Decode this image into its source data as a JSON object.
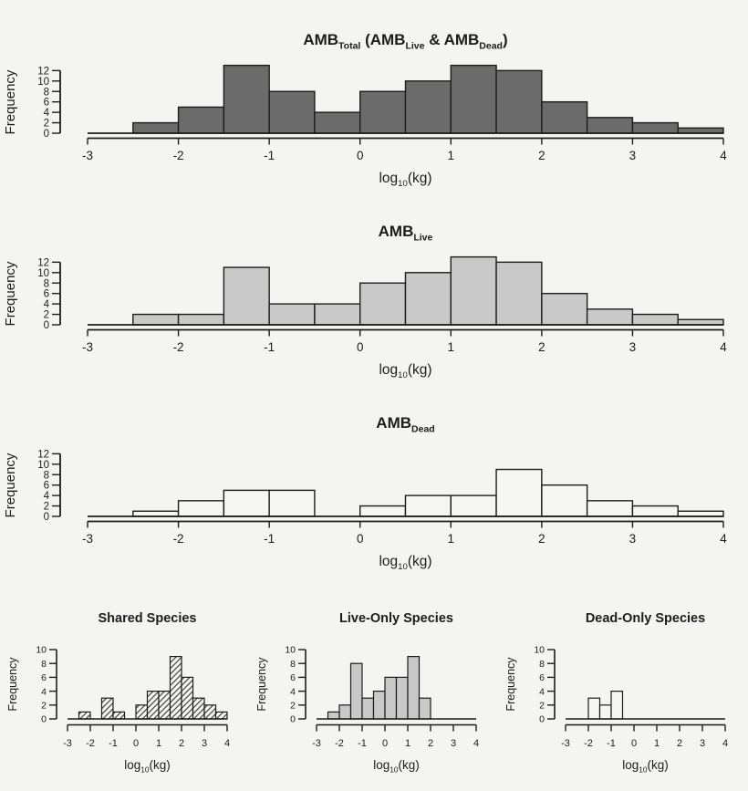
{
  "colors": {
    "background": "#f4f4f2",
    "bar_dark": "#6b6b6b",
    "bar_light": "#c9c9c9",
    "bar_white": "#f6f6f5",
    "stroke": "#1c1c1c",
    "text": "#1c1c1c"
  },
  "chart_data": [
    {
      "id": "amb-total",
      "type": "bar",
      "subtype": "histogram",
      "size": "large",
      "title": "AMB_Total (AMB_Live & AMB_Dead)",
      "title_parts": [
        {
          "t": "AMB"
        },
        {
          "sub": "Total"
        },
        {
          "t": " (AMB"
        },
        {
          "sub": "Live"
        },
        {
          "t": " & AMB"
        },
        {
          "sub": "Dead"
        },
        {
          "t": ")"
        }
      ],
      "xlabel": "log10(kg)",
      "xlabel_parts": [
        {
          "t": "log"
        },
        {
          "sub": "10"
        },
        {
          "t": "(kg)"
        }
      ],
      "ylabel": "Frequency",
      "bin_start": -3,
      "bin_width": 0.5,
      "values": [
        0,
        2,
        5,
        13,
        8,
        4,
        8,
        10,
        13,
        12,
        6,
        3,
        2,
        1
      ],
      "xlim": [
        -3,
        4
      ],
      "ylim": [
        0,
        13
      ],
      "x_ticks": [
        -3,
        -2,
        -1,
        0,
        1,
        2,
        3,
        4
      ],
      "y_ticks": [
        0,
        2,
        4,
        6,
        8,
        10,
        12
      ],
      "grid": false,
      "legend": "none",
      "fill": "dark"
    },
    {
      "id": "amb-live",
      "type": "bar",
      "subtype": "histogram",
      "size": "large",
      "title": "AMB_Live",
      "title_parts": [
        {
          "t": "AMB"
        },
        {
          "sub": "Live"
        }
      ],
      "xlabel": "log10(kg)",
      "xlabel_parts": [
        {
          "t": "log"
        },
        {
          "sub": "10"
        },
        {
          "t": "(kg)"
        }
      ],
      "ylabel": "Frequency",
      "bin_start": -3,
      "bin_width": 0.5,
      "values": [
        0,
        2,
        2,
        11,
        4,
        4,
        8,
        10,
        13,
        12,
        6,
        3,
        2,
        1
      ],
      "xlim": [
        -3,
        4
      ],
      "ylim": [
        0,
        13
      ],
      "x_ticks": [
        -3,
        -2,
        -1,
        0,
        1,
        2,
        3,
        4
      ],
      "y_ticks": [
        0,
        2,
        4,
        6,
        8,
        10,
        12
      ],
      "grid": false,
      "legend": "none",
      "fill": "light"
    },
    {
      "id": "amb-dead",
      "type": "bar",
      "subtype": "histogram",
      "size": "large",
      "title": "AMB_Dead",
      "title_parts": [
        {
          "t": "AMB"
        },
        {
          "sub": "Dead"
        }
      ],
      "xlabel": "log10(kg)",
      "xlabel_parts": [
        {
          "t": "log"
        },
        {
          "sub": "10"
        },
        {
          "t": "(kg)"
        }
      ],
      "ylabel": "Frequency",
      "bin_start": -3,
      "bin_width": 0.5,
      "values": [
        0,
        1,
        3,
        5,
        5,
        0,
        2,
        4,
        4,
        9,
        6,
        3,
        2,
        1
      ],
      "xlim": [
        -3,
        4
      ],
      "ylim": [
        0,
        13
      ],
      "x_ticks": [
        -3,
        -2,
        -1,
        0,
        1,
        2,
        3,
        4
      ],
      "y_ticks": [
        0,
        2,
        4,
        6,
        8,
        10,
        12
      ],
      "grid": false,
      "legend": "none",
      "fill": "white"
    },
    {
      "id": "shared-species",
      "type": "bar",
      "subtype": "histogram",
      "size": "small",
      "title": "Shared Species",
      "title_parts": [
        {
          "t": "Shared Species"
        }
      ],
      "xlabel": "log10(kg)",
      "xlabel_parts": [
        {
          "t": "log"
        },
        {
          "sub": "10"
        },
        {
          "t": "(kg)"
        }
      ],
      "ylabel": "Frequency",
      "bin_start": -3,
      "bin_width": 0.5,
      "values": [
        0,
        1,
        0,
        3,
        1,
        0,
        2,
        4,
        4,
        9,
        6,
        3,
        2,
        1
      ],
      "xlim": [
        -3,
        4
      ],
      "ylim": [
        0,
        10
      ],
      "x_ticks": [
        -3,
        -2,
        -1,
        0,
        1,
        2,
        3,
        4
      ],
      "y_ticks": [
        0,
        2,
        4,
        6,
        8,
        10
      ],
      "grid": false,
      "legend": "none",
      "fill": "hatch"
    },
    {
      "id": "live-only-species",
      "type": "bar",
      "subtype": "histogram",
      "size": "small",
      "title": "Live-Only Species",
      "title_parts": [
        {
          "t": "Live-Only Species"
        }
      ],
      "xlabel": "log10(kg)",
      "xlabel_parts": [
        {
          "t": "log"
        },
        {
          "sub": "10"
        },
        {
          "t": "(kg)"
        }
      ],
      "ylabel": "Frequency",
      "bin_start": -3,
      "bin_width": 0.5,
      "values": [
        0,
        1,
        2,
        8,
        3,
        4,
        6,
        6,
        9,
        3,
        0,
        0,
        0,
        0
      ],
      "xlim": [
        -3,
        4
      ],
      "ylim": [
        0,
        10
      ],
      "x_ticks": [
        -3,
        -2,
        -1,
        0,
        1,
        2,
        3,
        4
      ],
      "y_ticks": [
        0,
        2,
        4,
        6,
        8,
        10
      ],
      "grid": false,
      "legend": "none",
      "fill": "light"
    },
    {
      "id": "dead-only-species",
      "type": "bar",
      "subtype": "histogram",
      "size": "small",
      "title": "Dead-Only Species",
      "title_parts": [
        {
          "t": "Dead-Only Species"
        }
      ],
      "xlabel": "log10(kg)",
      "xlabel_parts": [
        {
          "t": "log"
        },
        {
          "sub": "10"
        },
        {
          "t": "(kg)"
        }
      ],
      "ylabel": "Frequency",
      "bin_start": -3,
      "bin_width": 0.5,
      "values": [
        0,
        0,
        3,
        2,
        4,
        0,
        0,
        0,
        0,
        0,
        0,
        0,
        0,
        0
      ],
      "xlim": [
        -3,
        4
      ],
      "ylim": [
        0,
        10
      ],
      "x_ticks": [
        -3,
        -2,
        -1,
        0,
        1,
        2,
        3,
        4
      ],
      "y_ticks": [
        0,
        2,
        4,
        6,
        8,
        10
      ],
      "grid": false,
      "legend": "none",
      "fill": "white"
    }
  ]
}
